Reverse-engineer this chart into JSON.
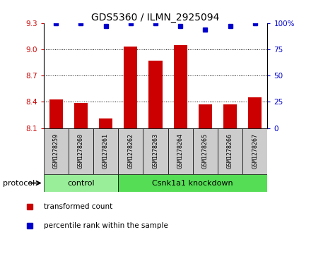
{
  "title": "GDS5360 / ILMN_2925094",
  "samples": [
    "GSM1278259",
    "GSM1278260",
    "GSM1278261",
    "GSM1278262",
    "GSM1278263",
    "GSM1278264",
    "GSM1278265",
    "GSM1278266",
    "GSM1278267"
  ],
  "bar_values": [
    8.43,
    8.39,
    8.21,
    9.03,
    8.87,
    9.05,
    8.37,
    8.37,
    8.45
  ],
  "percentile_values": [
    100,
    100,
    97,
    100,
    100,
    97,
    94,
    97,
    100
  ],
  "ylim_left": [
    8.1,
    9.3
  ],
  "ylim_right": [
    0,
    100
  ],
  "yticks_left": [
    8.1,
    8.4,
    8.7,
    9.0,
    9.3
  ],
  "yticks_right": [
    0,
    25,
    50,
    75,
    100
  ],
  "bar_color": "#cc0000",
  "percentile_color": "#0000cc",
  "bar_width": 0.55,
  "control_label": "control",
  "knockdown_label": "Csnk1a1 knockdown",
  "protocol_label": "protocol",
  "legend_bar_label": "transformed count",
  "legend_percentile_label": "percentile rank within the sample",
  "sample_box_color": "#cccccc",
  "control_box_color": "#99ee99",
  "knockdown_box_color": "#55dd55",
  "right_ylabel_color": "#0000cc",
  "left_ylabel_color": "#cc0000",
  "n_control": 3,
  "n_knockdown": 6
}
